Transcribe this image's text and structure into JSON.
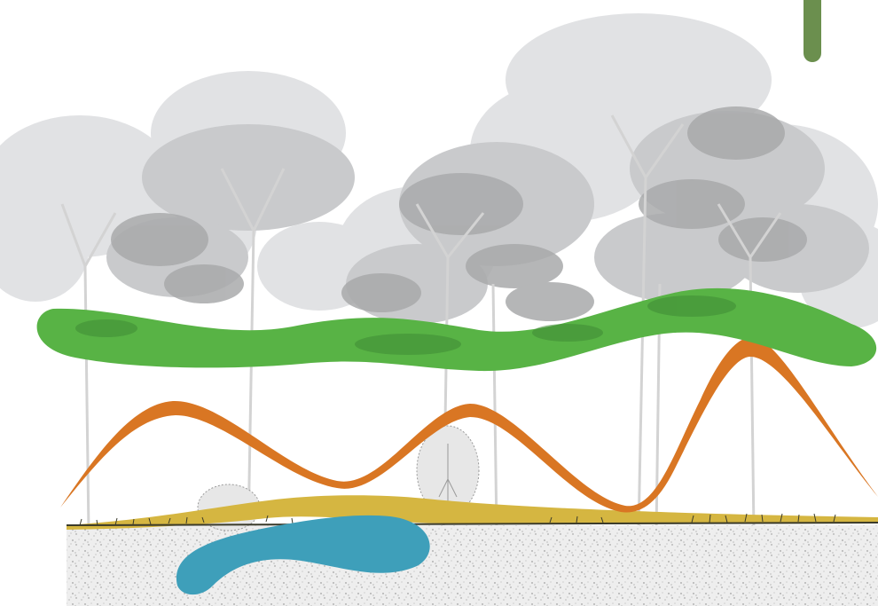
{
  "diagram": {
    "subject": "forest-cross-section",
    "colors": {
      "background": "#ffffff",
      "canopy_light": "#e1e2e4",
      "canopy_mid": "#c9cacc",
      "canopy_dark": "#a9aaab",
      "trunk": "#dcdcdc",
      "shrub": "#9a9a9a",
      "soil": "#eeeeee",
      "soil_speck": "#8b8b8b",
      "grass": "#3a3a2a",
      "green_band": "#58b345",
      "orange_band": "#d97623",
      "yellow_band": "#d5b641",
      "blue_pool": "#3e9fba",
      "corner_tab": "#6b8f4e"
    },
    "layers": [
      {
        "id": "canopy",
        "color_key": "green_band"
      },
      {
        "id": "midstory",
        "color_key": "orange_band"
      },
      {
        "id": "ground-cover",
        "color_key": "yellow_band"
      },
      {
        "id": "soil-water",
        "color_key": "blue_pool"
      }
    ]
  }
}
